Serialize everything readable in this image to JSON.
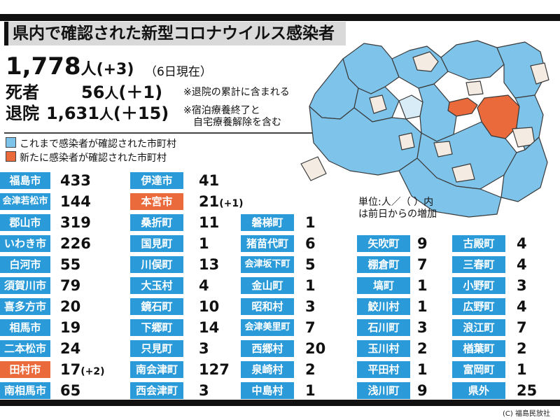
{
  "title": "県内で確認された新型コロナウイルス感染者",
  "total": {
    "count": "1,778",
    "unit": "人",
    "increase": "(+3)",
    "as_of": "（6日現在）"
  },
  "deaths": {
    "label": "死者",
    "count": "56",
    "unit": "人",
    "increase": "(＋1)"
  },
  "discharged": {
    "label": "退院",
    "count": "1,631",
    "unit": "人",
    "increase": "(＋15)"
  },
  "notes": [
    "※退院の累計に含まれる",
    "※宿泊療養終了と",
    "自宅療養解除を含む"
  ],
  "legend": [
    {
      "label": "これまで感染者が確認された市町村",
      "color": "#7ec3ea"
    },
    {
      "label": "新たに感染者が確認された市町村",
      "color": "#ea6a3c"
    }
  ],
  "unit_note": [
    "単位:人／（ ）内",
    "は前日からの増加"
  ],
  "columns": [
    [
      {
        "name": "福島市",
        "count": "433",
        "highlight": false
      },
      {
        "name": "会津若松市",
        "count": "144",
        "highlight": false
      },
      {
        "name": "郡山市",
        "count": "319",
        "highlight": false
      },
      {
        "name": "いわき市",
        "count": "226",
        "highlight": false
      },
      {
        "name": "白河市",
        "count": "55",
        "highlight": false
      },
      {
        "name": "須賀川市",
        "count": "79",
        "highlight": false
      },
      {
        "name": "喜多方市",
        "count": "20",
        "highlight": false
      },
      {
        "name": "相馬市",
        "count": "19",
        "highlight": false
      },
      {
        "name": "二本松市",
        "count": "24",
        "highlight": false
      },
      {
        "name": "田村市",
        "count": "17",
        "increase": "(+2)",
        "highlight": true
      },
      {
        "name": "南相馬市",
        "count": "65",
        "highlight": false
      }
    ],
    [
      {
        "name": "伊達市",
        "count": "41",
        "highlight": false
      },
      {
        "name": "本宮市",
        "count": "21",
        "increase": "(+1)",
        "highlight": true
      },
      {
        "name": "桑折町",
        "count": "11",
        "highlight": false
      },
      {
        "name": "国見町",
        "count": "1",
        "highlight": false
      },
      {
        "name": "川俣町",
        "count": "13",
        "highlight": false
      },
      {
        "name": "大玉村",
        "count": "4",
        "highlight": false
      },
      {
        "name": "鏡石町",
        "count": "10",
        "highlight": false
      },
      {
        "name": "下郷町",
        "count": "14",
        "highlight": false
      },
      {
        "name": "只見町",
        "count": "3",
        "highlight": false
      },
      {
        "name": "南会津町",
        "count": "127",
        "highlight": false
      },
      {
        "name": "西会津町",
        "count": "3",
        "highlight": false
      }
    ],
    [
      {
        "name": "磐梯町",
        "count": "1",
        "highlight": false
      },
      {
        "name": "猪苗代町",
        "count": "6",
        "highlight": false
      },
      {
        "name": "会津坂下町",
        "count": "5",
        "highlight": false
      },
      {
        "name": "金山町",
        "count": "1",
        "highlight": false
      },
      {
        "name": "昭和村",
        "count": "3",
        "highlight": false
      },
      {
        "name": "会津美里町",
        "count": "7",
        "highlight": false
      },
      {
        "name": "西郷村",
        "count": "20",
        "highlight": false
      },
      {
        "name": "泉崎村",
        "count": "2",
        "highlight": false
      },
      {
        "name": "中島村",
        "count": "1",
        "highlight": false
      }
    ],
    [
      {
        "name": "矢吹町",
        "count": "9",
        "highlight": false
      },
      {
        "name": "棚倉町",
        "count": "7",
        "highlight": false
      },
      {
        "name": "塙町",
        "count": "1",
        "highlight": false
      },
      {
        "name": "鮫川村",
        "count": "1",
        "highlight": false
      },
      {
        "name": "石川町",
        "count": "3",
        "highlight": false
      },
      {
        "name": "玉川村",
        "count": "2",
        "highlight": false
      },
      {
        "name": "平田村",
        "count": "1",
        "highlight": false
      },
      {
        "name": "浅川町",
        "count": "9",
        "highlight": false
      }
    ],
    [
      {
        "name": "古殿町",
        "count": "4",
        "highlight": false
      },
      {
        "name": "三春町",
        "count": "4",
        "highlight": false
      },
      {
        "name": "小野町",
        "count": "3",
        "highlight": false
      },
      {
        "name": "広野町",
        "count": "4",
        "highlight": false
      },
      {
        "name": "浪江町",
        "count": "7",
        "highlight": false
      },
      {
        "name": "楢葉町",
        "count": "2",
        "highlight": false
      },
      {
        "name": "富岡町",
        "count": "1",
        "highlight": false
      },
      {
        "name": "県外",
        "count": "25",
        "highlight": false
      }
    ]
  ],
  "copyright": "(C) 福島民放社"
}
